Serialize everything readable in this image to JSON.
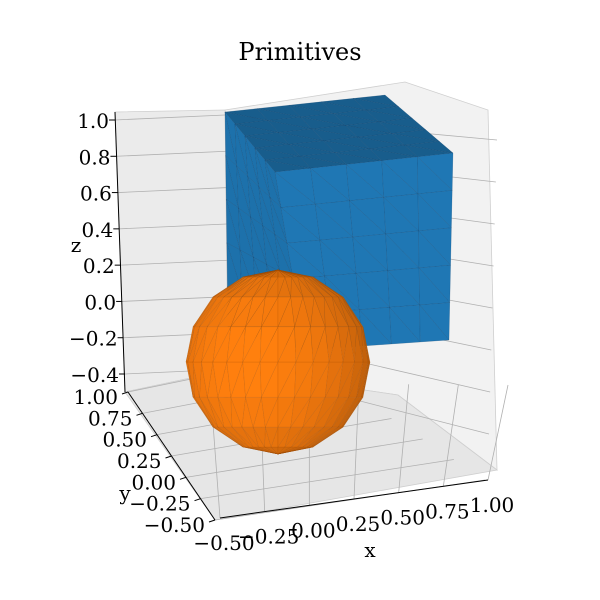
{
  "chart_data": {
    "type": "3d-surface",
    "title": "Primitives",
    "xlabel": "x",
    "ylabel": "y",
    "zlabel": "z",
    "xlim": [
      -0.5,
      1.0
    ],
    "ylim": [
      -0.5,
      1.0
    ],
    "zlim": [
      -0.5,
      1.0
    ],
    "x_ticks": [
      "−0.50",
      "−0.25",
      "0.00",
      "0.25",
      "0.50",
      "0.75",
      "1.00"
    ],
    "y_ticks": [
      "−0.50",
      "−0.25",
      "0.00",
      "0.25",
      "0.50",
      "0.75",
      "1.00"
    ],
    "z_ticks": [
      "−0.4",
      "−0.2",
      "0.0",
      "0.2",
      "0.4",
      "0.6",
      "0.8",
      "1.0"
    ],
    "grid": true,
    "objects": [
      {
        "shape": "cube",
        "min": [
          0,
          0,
          0
        ],
        "max": [
          1,
          1,
          1
        ],
        "color": "#1f77b4"
      },
      {
        "shape": "sphere",
        "center": [
          0,
          0,
          0
        ],
        "radius": 0.5,
        "color": "#ff7f0e"
      }
    ]
  }
}
